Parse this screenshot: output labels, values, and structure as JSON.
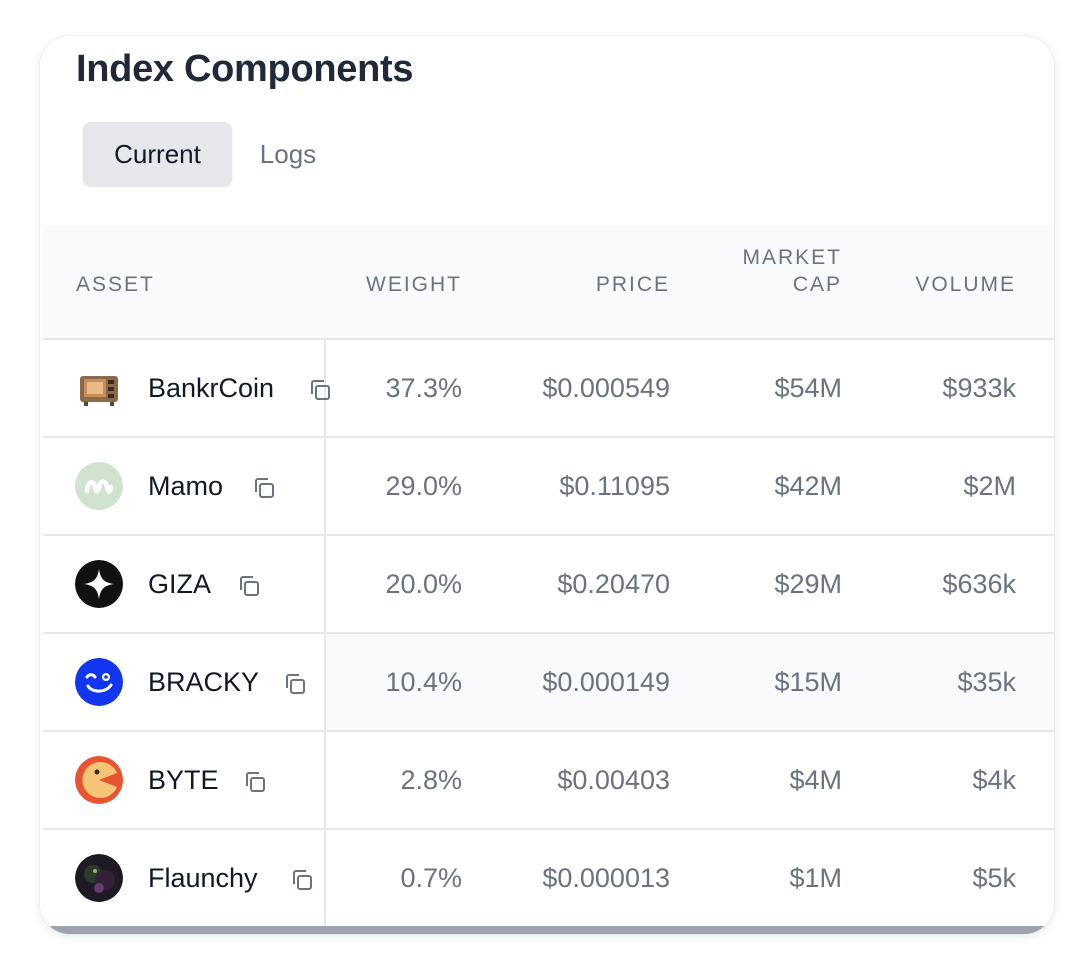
{
  "title": "Index Components",
  "tabs": [
    {
      "label": "Current",
      "active": true
    },
    {
      "label": "Logs",
      "active": false
    }
  ],
  "columns": {
    "asset": "ASSET",
    "weight": "WEIGHT",
    "price": "PRICE",
    "market_cap_line1": "MARKET",
    "market_cap_line2": "CAP",
    "volume": "VOLUME"
  },
  "rows": [
    {
      "name": "BankrCoin",
      "weight": "37.3%",
      "price": "$0.000549",
      "market_cap": "$54M",
      "volume": "$933k",
      "icon": "bankrcoin-icon"
    },
    {
      "name": "Mamo",
      "weight": "29.0%",
      "price": "$0.11095",
      "market_cap": "$42M",
      "volume": "$2M",
      "icon": "mamo-icon"
    },
    {
      "name": "GIZA",
      "weight": "20.0%",
      "price": "$0.20470",
      "market_cap": "$29M",
      "volume": "$636k",
      "icon": "giza-icon"
    },
    {
      "name": "BRACKY",
      "weight": "10.4%",
      "price": "$0.000149",
      "market_cap": "$15M",
      "volume": "$35k",
      "icon": "bracky-icon"
    },
    {
      "name": "BYTE",
      "weight": "2.8%",
      "price": "$0.00403",
      "market_cap": "$4M",
      "volume": "$4k",
      "icon": "byte-icon"
    },
    {
      "name": "Flaunchy",
      "weight": "0.7%",
      "price": "$0.000013",
      "market_cap": "$1M",
      "volume": "$5k",
      "icon": "flaunchy-icon"
    }
  ],
  "colors": {
    "tab_active_bg": "#e5e7eb",
    "header_bg": "#f9fafb",
    "muted_text": "#6b7280",
    "border": "#e5e7eb"
  }
}
